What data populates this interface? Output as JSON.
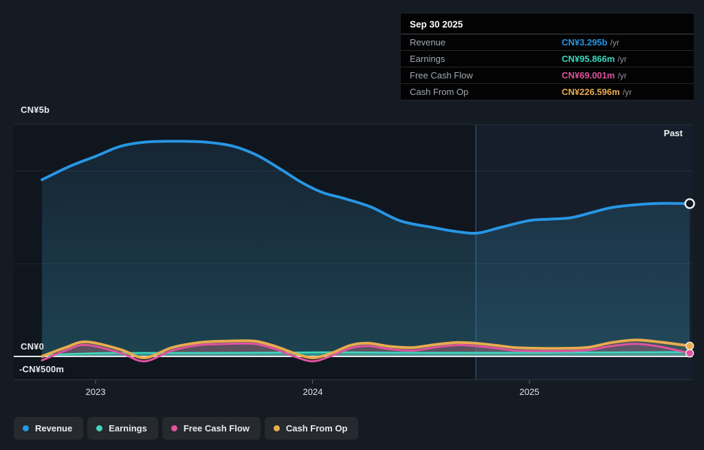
{
  "colors": {
    "revenue": "#2796e4",
    "earnings": "#3cd8bd",
    "fcf": "#e0539f",
    "cashop": "#e8ab4f",
    "zero_line": "#e4e9ee",
    "gridline": "rgba(255,255,255,0.08)",
    "bottom_gridline": "rgba(255,255,255,0.13)",
    "plot_bg": "#10161e",
    "page_bg": "#141b23",
    "highlight": "rgba(110,175,235,0.06)",
    "divider": "rgba(75,135,205,0.45)"
  },
  "tooltip": {
    "date": "Sep 30 2025",
    "rows": [
      {
        "label": "Revenue",
        "value": "CN¥3.295b",
        "unit": "/yr",
        "color_key": "revenue"
      },
      {
        "label": "Earnings",
        "value": "CN¥95.866m",
        "unit": "/yr",
        "color_key": "earnings"
      },
      {
        "label": "Free Cash Flow",
        "value": "CN¥69.001m",
        "unit": "/yr",
        "color_key": "fcf"
      },
      {
        "label": "Cash From Op",
        "value": "CN¥226.596m",
        "unit": "/yr",
        "color_key": "cashop"
      }
    ]
  },
  "chart_labels": {
    "past": "Past"
  },
  "axis": {
    "y_labels": [
      {
        "text": "CN¥5b",
        "value": 5
      },
      {
        "text": "CN¥0",
        "value": 0
      },
      {
        "text": "-CN¥500m",
        "value": -0.5
      }
    ],
    "x_ticks": [
      {
        "label": "2023",
        "t": 2023
      },
      {
        "label": "2024",
        "t": 2024
      },
      {
        "label": "2025",
        "t": 2025
      }
    ]
  },
  "legend": {
    "items": [
      {
        "label": "Revenue",
        "color_key": "revenue"
      },
      {
        "label": "Earnings",
        "color_key": "earnings"
      },
      {
        "label": "Free Cash Flow",
        "color_key": "fcf"
      },
      {
        "label": "Cash From Op",
        "color_key": "cashop"
      }
    ]
  },
  "chart_data": {
    "type": "area",
    "x_unit": "decimal_years",
    "y_unit": "CN¥ billions",
    "xlim": [
      2022.753,
      2025.739
    ],
    "ylim": [
      -0.5,
      5
    ],
    "gridline_values": [
      5,
      4,
      2,
      -0.5
    ],
    "zero_value": 0,
    "highlight_from": 2024.753,
    "latest_point_date": "Sep 30 2025",
    "series": [
      {
        "key": "revenue",
        "name": "Revenue",
        "latest_value_b": 3.295,
        "points": [
          [
            2022.753,
            3.81
          ],
          [
            2022.877,
            4.09
          ],
          [
            2023.003,
            4.32
          ],
          [
            2023.114,
            4.53
          ],
          [
            2023.225,
            4.62
          ],
          [
            2023.368,
            4.64
          ],
          [
            2023.51,
            4.62
          ],
          [
            2023.637,
            4.53
          ],
          [
            2023.748,
            4.33
          ],
          [
            2023.859,
            4.02
          ],
          [
            2023.954,
            3.74
          ],
          [
            2024.049,
            3.53
          ],
          [
            2024.144,
            3.41
          ],
          [
            2024.271,
            3.22
          ],
          [
            2024.407,
            2.92
          ],
          [
            2024.556,
            2.78
          ],
          [
            2024.667,
            2.69
          ],
          [
            2024.762,
            2.66
          ],
          [
            2024.873,
            2.79
          ],
          [
            2025.0,
            2.93
          ],
          [
            2025.095,
            2.96
          ],
          [
            2025.19,
            2.99
          ],
          [
            2025.285,
            3.1
          ],
          [
            2025.38,
            3.21
          ],
          [
            2025.49,
            3.27
          ],
          [
            2025.6,
            3.3
          ],
          [
            2025.739,
            3.295
          ]
        ]
      },
      {
        "key": "cashop",
        "name": "Cash From Op",
        "latest_value_b": 0.2266,
        "points": [
          [
            2022.753,
            0.0
          ],
          [
            2022.861,
            0.19
          ],
          [
            2022.956,
            0.315
          ],
          [
            2023.114,
            0.15
          ],
          [
            2023.225,
            -0.03
          ],
          [
            2023.352,
            0.19
          ],
          [
            2023.479,
            0.3
          ],
          [
            2023.605,
            0.33
          ],
          [
            2023.732,
            0.33
          ],
          [
            2023.827,
            0.22
          ],
          [
            2023.922,
            0.06
          ],
          [
            2024.002,
            -0.03
          ],
          [
            2024.081,
            0.06
          ],
          [
            2024.176,
            0.24
          ],
          [
            2024.255,
            0.285
          ],
          [
            2024.35,
            0.22
          ],
          [
            2024.461,
            0.19
          ],
          [
            2024.556,
            0.25
          ],
          [
            2024.667,
            0.3
          ],
          [
            2024.746,
            0.285
          ],
          [
            2024.841,
            0.24
          ],
          [
            2024.937,
            0.19
          ],
          [
            2025.047,
            0.175
          ],
          [
            2025.158,
            0.175
          ],
          [
            2025.269,
            0.195
          ],
          [
            2025.38,
            0.3
          ],
          [
            2025.491,
            0.355
          ],
          [
            2025.602,
            0.31
          ],
          [
            2025.739,
            0.227
          ]
        ]
      },
      {
        "key": "fcf",
        "name": "Free Cash Flow",
        "latest_value_b": 0.069,
        "points": [
          [
            2022.753,
            -0.085
          ],
          [
            2022.861,
            0.125
          ],
          [
            2022.956,
            0.25
          ],
          [
            2023.114,
            0.075
          ],
          [
            2023.225,
            -0.105
          ],
          [
            2023.352,
            0.125
          ],
          [
            2023.479,
            0.245
          ],
          [
            2023.605,
            0.27
          ],
          [
            2023.732,
            0.27
          ],
          [
            2023.827,
            0.16
          ],
          [
            2023.922,
            -0.01
          ],
          [
            2024.002,
            -0.105
          ],
          [
            2024.081,
            0.0
          ],
          [
            2024.176,
            0.18
          ],
          [
            2024.255,
            0.225
          ],
          [
            2024.35,
            0.16
          ],
          [
            2024.461,
            0.125
          ],
          [
            2024.556,
            0.19
          ],
          [
            2024.667,
            0.245
          ],
          [
            2024.746,
            0.225
          ],
          [
            2024.841,
            0.18
          ],
          [
            2024.937,
            0.125
          ],
          [
            2025.047,
            0.115
          ],
          [
            2025.158,
            0.115
          ],
          [
            2025.269,
            0.135
          ],
          [
            2025.38,
            0.225
          ],
          [
            2025.491,
            0.27
          ],
          [
            2025.602,
            0.21
          ],
          [
            2025.739,
            0.069
          ]
        ]
      },
      {
        "key": "earnings",
        "name": "Earnings",
        "latest_value_b": 0.0959,
        "points": [
          [
            2022.753,
            0.02
          ],
          [
            2022.9,
            0.055
          ],
          [
            2023.1,
            0.075
          ],
          [
            2023.5,
            0.075
          ],
          [
            2023.9,
            0.085
          ],
          [
            2024.1,
            0.09
          ],
          [
            2024.5,
            0.08
          ],
          [
            2024.9,
            0.08
          ],
          [
            2025.2,
            0.085
          ],
          [
            2025.5,
            0.09
          ],
          [
            2025.739,
            0.096
          ]
        ]
      }
    ]
  }
}
